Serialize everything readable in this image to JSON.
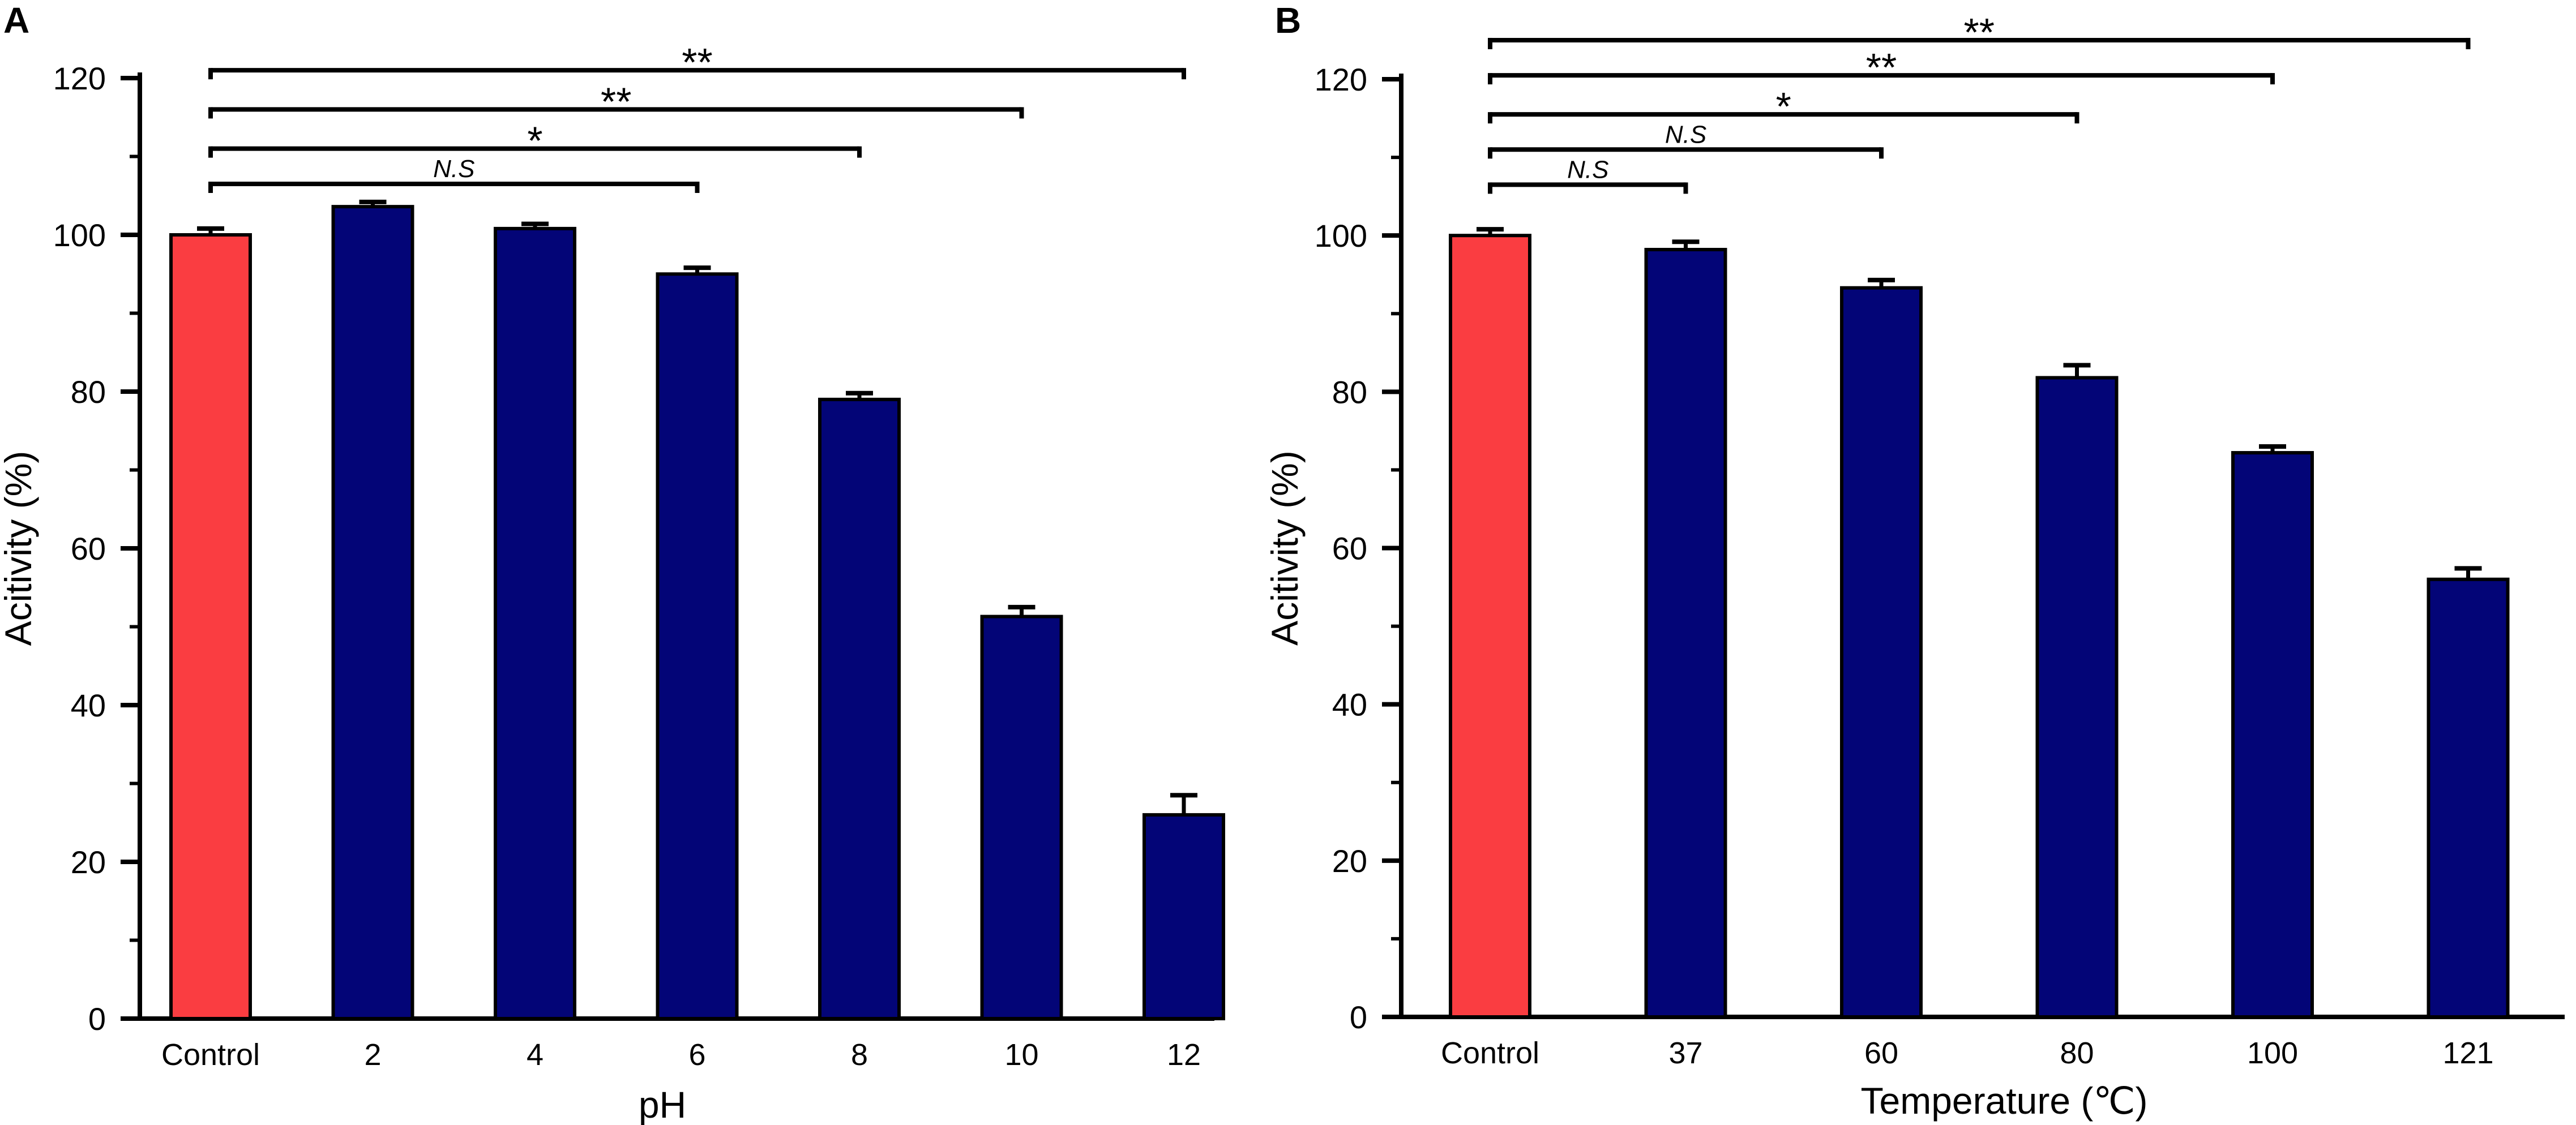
{
  "colors": {
    "control": "#fa3d41",
    "treatment": "#030577",
    "axis": "#000000"
  },
  "chart_data": [
    {
      "type": "bar",
      "panel": "A",
      "xlabel": "pH",
      "ylabel": "Acitivity (%)",
      "categories": [
        "Control",
        "2",
        "4",
        "6",
        "8",
        "10",
        "12"
      ],
      "values": [
        100,
        103.6,
        100.8,
        95,
        79,
        51.3,
        26
      ],
      "errors": [
        0.8,
        0.6,
        0.6,
        0.8,
        0.8,
        1.2,
        2.5
      ],
      "ylim": [
        0,
        120
      ],
      "yticks": [
        "0",
        "20",
        "40",
        "60",
        "80",
        "100",
        "120"
      ],
      "significance": [
        {
          "from": 0,
          "to": 3,
          "label": "N.S",
          "y": 106.5
        },
        {
          "from": 0,
          "to": 4,
          "label": "*",
          "y": 111
        },
        {
          "from": 0,
          "to": 5,
          "label": "**",
          "y": 116
        },
        {
          "from": 0,
          "to": 6,
          "label": "**",
          "y": 121
        }
      ]
    },
    {
      "type": "bar",
      "panel": "B",
      "xlabel": "Temperature (℃)",
      "ylabel": "Acitivity (%)",
      "categories": [
        "Control",
        "37",
        "60",
        "80",
        "100",
        "121"
      ],
      "values": [
        100,
        98.2,
        93.3,
        81.8,
        72.2,
        56
      ],
      "errors": [
        0.8,
        1,
        1,
        1.6,
        0.8,
        1.4
      ],
      "ylim": [
        0,
        120
      ],
      "yticks": [
        "0",
        "20",
        "40",
        "60",
        "80",
        "100",
        "120"
      ],
      "significance": [
        {
          "from": 0,
          "to": 1,
          "label": "N.S",
          "y": 106.5
        },
        {
          "from": 0,
          "to": 2,
          "label": "N.S",
          "y": 111
        },
        {
          "from": 0,
          "to": 3,
          "label": "*",
          "y": 115.5
        },
        {
          "from": 0,
          "to": 4,
          "label": "**",
          "y": 120.5
        },
        {
          "from": 0,
          "to": 5,
          "label": "**",
          "y": 125
        }
      ]
    }
  ]
}
